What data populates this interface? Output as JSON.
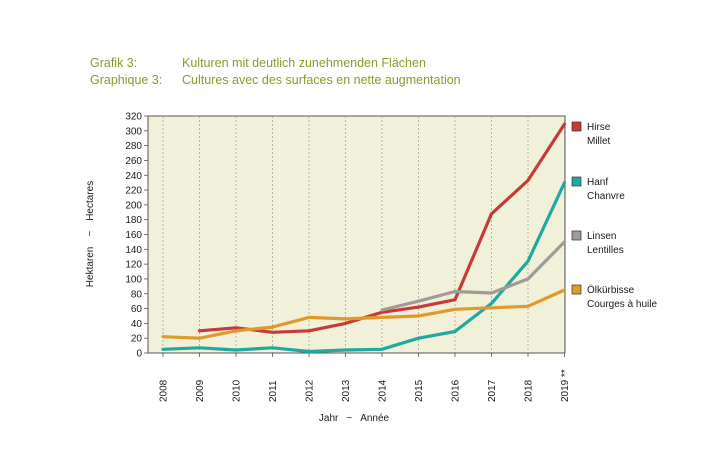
{
  "header": {
    "row1_label": "Grafik 3:",
    "row1_text": "Kulturen mit deutlich zunehmenden Flächen",
    "row2_label": "Graphique 3:",
    "row2_text": "Cultures avec des surfaces en nette augmentation"
  },
  "chart_data": {
    "type": "line",
    "x": [
      "2008",
      "2009",
      "2010",
      "2011",
      "2012",
      "2013",
      "2014",
      "2015",
      "2016",
      "2017",
      "2018",
      "2019 **"
    ],
    "ylim": [
      0,
      320
    ],
    "yticks": [
      0,
      20,
      40,
      60,
      80,
      100,
      120,
      140,
      160,
      180,
      200,
      220,
      240,
      260,
      280,
      300,
      320
    ],
    "ylabel_de": "Hektaren",
    "ylabel_sep": "~",
    "ylabel_fr": "Hectares",
    "xlabel_de": "Jahr",
    "xlabel_sep": "~",
    "xlabel_fr": "Année",
    "grid": "vertical",
    "legend_position": "right",
    "series": [
      {
        "name_de": "Hirse",
        "name_fr": "Millet",
        "color": "#c8393c",
        "values": [
          null,
          30,
          34,
          28,
          30,
          40,
          55,
          62,
          72,
          188,
          233,
          309
        ]
      },
      {
        "name_de": "Hanf",
        "name_fr": "Chanvre",
        "color": "#1fa9a2",
        "values": [
          5,
          7,
          4,
          7,
          2,
          4,
          5,
          20,
          29,
          67,
          124,
          230
        ]
      },
      {
        "name_de": "Linsen",
        "name_fr": "Lentilles",
        "color": "#a19a96",
        "values": [
          null,
          null,
          null,
          null,
          null,
          null,
          58,
          70,
          83,
          81,
          100,
          150
        ]
      },
      {
        "name_de": "Ölkürbisse",
        "name_fr": "Courges à huile",
        "color": "#e09a2c",
        "values": [
          22,
          20,
          30,
          35,
          48,
          46,
          48,
          50,
          59,
          61,
          63,
          85
        ]
      }
    ]
  }
}
